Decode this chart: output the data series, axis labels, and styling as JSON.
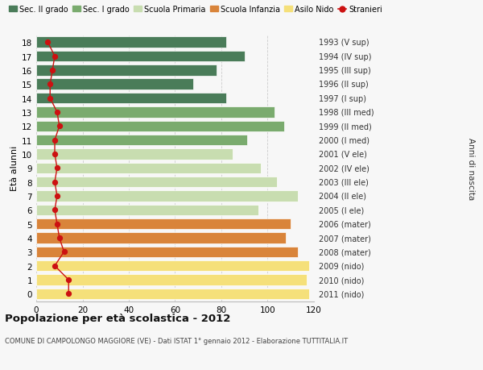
{
  "ages": [
    18,
    17,
    16,
    15,
    14,
    13,
    12,
    11,
    10,
    9,
    8,
    7,
    6,
    5,
    4,
    3,
    2,
    1,
    0
  ],
  "right_labels": [
    "1993 (V sup)",
    "1994 (IV sup)",
    "1995 (III sup)",
    "1996 (II sup)",
    "1997 (I sup)",
    "1998 (III med)",
    "1999 (II med)",
    "2000 (I med)",
    "2001 (V ele)",
    "2002 (IV ele)",
    "2003 (III ele)",
    "2004 (II ele)",
    "2005 (I ele)",
    "2006 (mater)",
    "2007 (mater)",
    "2008 (mater)",
    "2009 (nido)",
    "2010 (nido)",
    "2011 (nido)"
  ],
  "bar_values": [
    82,
    90,
    78,
    68,
    82,
    103,
    107,
    91,
    85,
    97,
    104,
    113,
    96,
    110,
    108,
    113,
    118,
    117,
    118
  ],
  "bar_colors": [
    "#4a7c59",
    "#4a7c59",
    "#4a7c59",
    "#4a7c59",
    "#4a7c59",
    "#7aab6e",
    "#7aab6e",
    "#7aab6e",
    "#c8ddb0",
    "#c8ddb0",
    "#c8ddb0",
    "#c8ddb0",
    "#c8ddb0",
    "#d9843a",
    "#d9843a",
    "#d9843a",
    "#f5e07a",
    "#f5e07a",
    "#f5e07a"
  ],
  "stranieri_values": [
    5,
    8,
    7,
    6,
    6,
    9,
    10,
    8,
    8,
    9,
    8,
    9,
    8,
    9,
    10,
    12,
    8,
    14,
    14
  ],
  "title": "Popolazione per età scolastica - 2012",
  "subtitle": "COMUNE DI CAMPOLONGO MAGGIORE (VE) - Dati ISTAT 1° gennaio 2012 - Elaborazione TUTTITALIA.IT",
  "ylabel_left": "Età alunni",
  "ylabel_right": "Anni di nascita",
  "xlim_max": 120,
  "legend_labels": [
    "Sec. II grado",
    "Sec. I grado",
    "Scuola Primaria",
    "Scuola Infanzia",
    "Asilo Nido",
    "Stranieri"
  ],
  "legend_colors": [
    "#4a7c59",
    "#7aab6e",
    "#c8ddb0",
    "#d9843a",
    "#f5e07a",
    "#cc1111"
  ],
  "bg_color": "#f7f7f7",
  "grid_color": "#cccccc",
  "bar_height": 0.78,
  "stranieri_color": "#cc1111"
}
